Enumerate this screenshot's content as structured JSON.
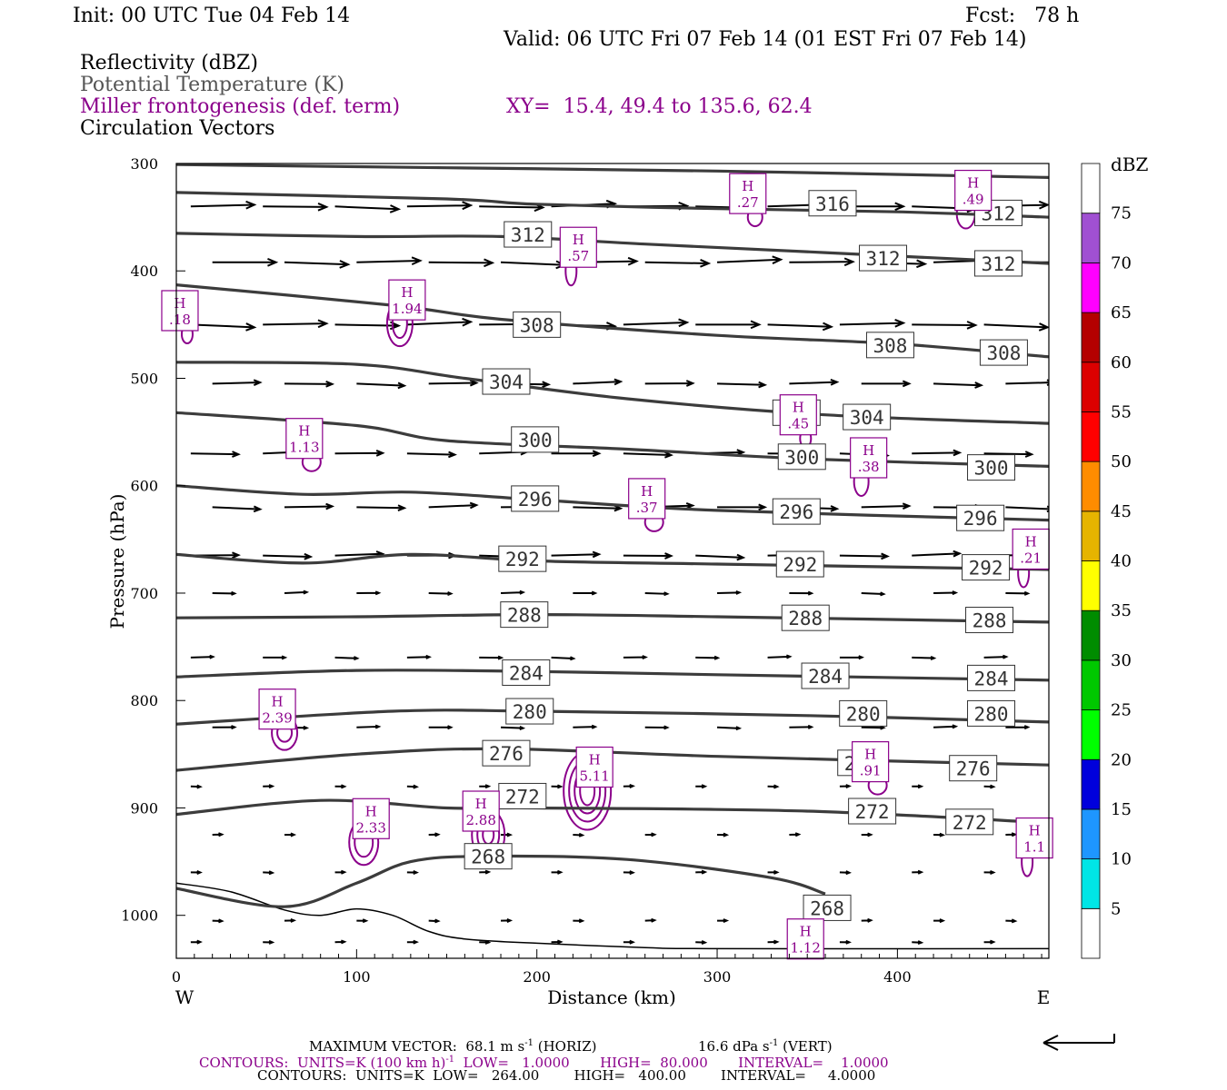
{
  "header": {
    "init": "Init: 00 UTC Tue 04 Feb 14",
    "fcst": "Fcst:   78 h",
    "valid": "Valid: 06 UTC Fri 07 Feb 14 (01 EST Fri 07 Feb 14)"
  },
  "legend_fields": {
    "reflectivity": "Reflectivity (dBZ)",
    "theta": "Potential Temperature (K)",
    "miller": "Miller frontogenesis (def. term)",
    "xy": "XY=  15.4, 49.4 to 135.6, 62.4",
    "vectors": "Circulation Vectors"
  },
  "colors": {
    "theta": "#3c3c3c",
    "miller": "#8b008b",
    "vector": "#000000"
  },
  "colorbar": {
    "unit": "dBZ",
    "levels": [
      "5",
      "10",
      "15",
      "20",
      "25",
      "30",
      "35",
      "40",
      "45",
      "50",
      "55",
      "60",
      "65",
      "70",
      "75"
    ],
    "colors": [
      "#ffffff",
      "#00e6e6",
      "#1e96ff",
      "#0000dc",
      "#00ff00",
      "#00c800",
      "#008c00",
      "#ffff00",
      "#e6b400",
      "#ff8c00",
      "#ff0000",
      "#dc0000",
      "#b40000",
      "#ff00ff",
      "#a050d2",
      "#ffffff"
    ]
  },
  "footer": {
    "max_vector": "MAXIMUM VECTOR:  68.1 m s",
    "max_vector_exp": "-1",
    "max_vector_horiz": " (HORIZ)",
    "max_vector_vert": "16.6 dPa s",
    "max_vector_vert_exp": "-1",
    "max_vector_vert_tail": " (VERT)",
    "contours_miller_a": "CONTOURS:  UNITS=K (100 km h)",
    "contours_miller_exp": "-1",
    "contours_miller_b": "  LOW=   1.0000       HIGH=  80.000       INTERVAL=    1.0000",
    "contours_theta": "CONTOURS:  UNITS=K  LOW=   264.00        HIGH=   400.00        INTERVAL=     4.0000"
  },
  "chart_data": {
    "type": "cross-section",
    "xlabel": "Distance (km)",
    "ylabel": "Pressure (hPa)",
    "xlim": [
      0,
      484
    ],
    "ylim": [
      1040,
      300
    ],
    "x_ticks": [
      "0",
      "100",
      "200",
      "300",
      "400"
    ],
    "y_ticks": [
      "300",
      "400",
      "500",
      "600",
      "700",
      "800",
      "900",
      "1000"
    ],
    "x_end_labels": {
      "left": "W",
      "right": "E"
    },
    "theta_contours": [
      {
        "label": "316",
        "points": [
          [
            0,
            301
          ],
          [
            150,
            304
          ],
          [
            300,
            307
          ],
          [
            484,
            313
          ]
        ],
        "label_at": [
          [
            364,
            337
          ]
        ]
      },
      {
        "label": "312",
        "points": [
          [
            0,
            327
          ],
          [
            150,
            333
          ],
          [
            200,
            338
          ],
          [
            300,
            342
          ],
          [
            400,
            345
          ],
          [
            484,
            350
          ]
        ],
        "label_at": [
          [
            456,
            346
          ]
        ]
      },
      {
        "label": "312",
        "points": [
          [
            0,
            365
          ],
          [
            100,
            368
          ],
          [
            180,
            368
          ],
          [
            260,
            375
          ],
          [
            360,
            383
          ],
          [
            484,
            393
          ]
        ],
        "label_at": [
          [
            195,
            366
          ],
          [
            392,
            388
          ],
          [
            456,
            393
          ]
        ]
      },
      {
        "label": "308",
        "points": [
          [
            0,
            413
          ],
          [
            120,
            432
          ],
          [
            180,
            445
          ],
          [
            300,
            460
          ],
          [
            400,
            468
          ],
          [
            484,
            480
          ]
        ],
        "label_at": [
          [
            200,
            450
          ],
          [
            396,
            469
          ],
          [
            459,
            476
          ]
        ]
      },
      {
        "label": "304",
        "points": [
          [
            0,
            485
          ],
          [
            100,
            487
          ],
          [
            160,
            500
          ],
          [
            250,
            519
          ],
          [
            360,
            534
          ],
          [
            484,
            542
          ]
        ],
        "label_at": [
          [
            183,
            503
          ],
          [
            344,
            532
          ],
          [
            383,
            536
          ]
        ]
      },
      {
        "label": "300",
        "points": [
          [
            0,
            532
          ],
          [
            100,
            544
          ],
          [
            150,
            558
          ],
          [
            250,
            566
          ],
          [
            350,
            575
          ],
          [
            484,
            582
          ]
        ],
        "label_at": [
          [
            199,
            557
          ],
          [
            347,
            573
          ],
          [
            452,
            583
          ]
        ]
      },
      {
        "label": "296",
        "points": [
          [
            0,
            600
          ],
          [
            70,
            608
          ],
          [
            130,
            606
          ],
          [
            200,
            613
          ],
          [
            300,
            623
          ],
          [
            484,
            632
          ]
        ],
        "label_at": [
          [
            199,
            612
          ],
          [
            344,
            624
          ],
          [
            446,
            630
          ]
        ]
      },
      {
        "label": "292",
        "points": [
          [
            0,
            664
          ],
          [
            70,
            672
          ],
          [
            130,
            664
          ],
          [
            200,
            670
          ],
          [
            300,
            673
          ],
          [
            484,
            678
          ]
        ],
        "label_at": [
          [
            192,
            668
          ],
          [
            346,
            673
          ],
          [
            449,
            676
          ]
        ]
      },
      {
        "label": "288",
        "points": [
          [
            0,
            723
          ],
          [
            100,
            722
          ],
          [
            200,
            720
          ],
          [
            300,
            722
          ],
          [
            484,
            727
          ]
        ],
        "label_at": [
          [
            193,
            720
          ],
          [
            349,
            723
          ],
          [
            451,
            725
          ]
        ]
      },
      {
        "label": "284",
        "points": [
          [
            0,
            778
          ],
          [
            100,
            772
          ],
          [
            200,
            773
          ],
          [
            300,
            776
          ],
          [
            484,
            781
          ]
        ],
        "label_at": [
          [
            194,
            774
          ],
          [
            360,
            777
          ],
          [
            452,
            779
          ]
        ]
      },
      {
        "label": "280",
        "points": [
          [
            0,
            822
          ],
          [
            120,
            810
          ],
          [
            200,
            810
          ],
          [
            350,
            814
          ],
          [
            484,
            820
          ]
        ],
        "label_at": [
          [
            196,
            810
          ],
          [
            381,
            812
          ],
          [
            452,
            812
          ]
        ]
      },
      {
        "label": "276",
        "points": [
          [
            0,
            865
          ],
          [
            100,
            850
          ],
          [
            180,
            845
          ],
          [
            300,
            852
          ],
          [
            484,
            860
          ]
        ],
        "label_at": [
          [
            183,
            849
          ],
          [
            380,
            858
          ],
          [
            442,
            863
          ]
        ]
      },
      {
        "label": "272",
        "points": [
          [
            0,
            906
          ],
          [
            80,
            893
          ],
          [
            150,
            900
          ],
          [
            200,
            900
          ],
          [
            350,
            903
          ],
          [
            484,
            914
          ]
        ],
        "label_at": [
          [
            192,
            889
          ],
          [
            386,
            903
          ],
          [
            440,
            913
          ]
        ]
      },
      {
        "label": "268",
        "points": [
          [
            0,
            975
          ],
          [
            60,
            992
          ],
          [
            100,
            970
          ],
          [
            130,
            950
          ],
          [
            170,
            945
          ],
          [
            250,
            948
          ],
          [
            330,
            965
          ],
          [
            360,
            980
          ]
        ],
        "label_at": [
          [
            173,
            945
          ],
          [
            361,
            993
          ]
        ]
      }
    ],
    "miller_maxima": [
      {
        "value": ".18",
        "at": [
          2,
          437
        ]
      },
      {
        "value": "1.94",
        "at": [
          128,
          427
        ]
      },
      {
        "value": "1.13",
        "at": [
          71,
          556
        ]
      },
      {
        "value": ".57",
        "at": [
          223,
          378
        ]
      },
      {
        "value": ".27",
        "at": [
          317,
          328
        ]
      },
      {
        "value": ".49",
        "at": [
          442,
          325
        ]
      },
      {
        "value": ".45",
        "at": [
          345,
          534
        ]
      },
      {
        "value": ".38",
        "at": [
          384,
          574
        ]
      },
      {
        "value": ".37",
        "at": [
          261,
          612
        ]
      },
      {
        "value": ".21",
        "at": [
          474,
          659
        ]
      },
      {
        "value": "2.39",
        "at": [
          56,
          808
        ]
      },
      {
        "value": "2.33",
        "at": [
          108,
          910
        ]
      },
      {
        "value": "2.88",
        "at": [
          169,
          903
        ]
      },
      {
        "value": "5.11",
        "at": [
          232,
          862
        ]
      },
      {
        "value": ".91",
        "at": [
          385,
          857
        ]
      },
      {
        "value": "1.1",
        "at": [
          476,
          928
        ]
      },
      {
        "value": "1.12",
        "at": [
          349,
          1022
        ]
      }
    ],
    "ground_pressure": [
      [
        0,
        970
      ],
      [
        30,
        978
      ],
      [
        60,
        995
      ],
      [
        80,
        1000
      ],
      [
        100,
        994
      ],
      [
        120,
        1000
      ],
      [
        140,
        1015
      ],
      [
        160,
        1022
      ],
      [
        200,
        1026
      ],
      [
        260,
        1030
      ],
      [
        300,
        1031
      ],
      [
        484,
        1031
      ]
    ]
  }
}
